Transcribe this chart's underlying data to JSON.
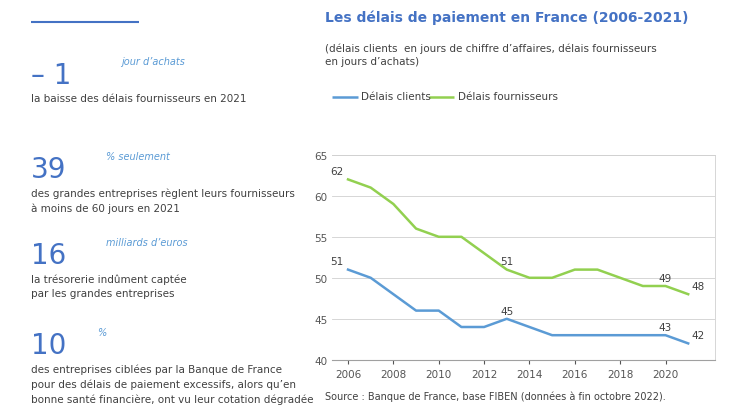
{
  "title_chart": "Les délais de paiement en France (2006-2021)",
  "subtitle_chart": "(délais clients  en jours de chiffre d’affaires, délais fournisseurs\nen jours d’achats)",
  "source": "Source : Banque de France, base FIBEN (données à fin octobre 2022).",
  "legend_clients": "Délais clients",
  "legend_fournisseurs": "Délais fournisseurs",
  "years": [
    2006,
    2007,
    2008,
    2009,
    2010,
    2011,
    2012,
    2013,
    2014,
    2015,
    2016,
    2017,
    2018,
    2019,
    2020,
    2021
  ],
  "clients": [
    51,
    50,
    48,
    46,
    46,
    44,
    44,
    45,
    44,
    43,
    43,
    43,
    43,
    43,
    43,
    42
  ],
  "fournisseurs": [
    62,
    61,
    59,
    56,
    55,
    55,
    53,
    51,
    50,
    50,
    51,
    51,
    50,
    49,
    49,
    48
  ],
  "color_clients": "#5b9bd5",
  "color_fournisseurs": "#92d050",
  "color_title": "#4472c4",
  "color_text_dark": "#404040",
  "color_text_blue": "#4472c4",
  "color_text_blue_small": "#5b9bd5",
  "ylim": [
    40,
    65
  ],
  "yticks": [
    40,
    45,
    50,
    55,
    60,
    65
  ],
  "xticks": [
    2006,
    2008,
    2010,
    2012,
    2014,
    2016,
    2018,
    2020
  ],
  "stat1_big": "– 1",
  "stat1_small": "jour d’achats",
  "stat1_desc": "la baisse des délais fournisseurs en 2021",
  "stat2_big": "39",
  "stat2_small": "% seulement",
  "stat2_desc": "des grandes entreprises règlent leurs fournisseurs\nà moins de 60 jours en 2021",
  "stat3_big": "16",
  "stat3_small": "milliards d’euros",
  "stat3_desc": "la trésorerie indûment captée\npar les grandes entreprises",
  "stat4_big": "10",
  "stat4_small": "%",
  "stat4_desc": "des entreprises ciblées par la Banque de France\npour des délais de paiement excessifs, alors qu’en\nbonne santé financière, ont vu leur cotation dégradée",
  "bg_color": "#ffffff",
  "grid_color": "#d0d0d0",
  "ann_c_2006": 51,
  "ann_c_2013": 45,
  "ann_c_2020": 43,
  "ann_c_2021": 42,
  "ann_f_2006": 62,
  "ann_f_2013": 51,
  "ann_f_2020": 49,
  "ann_f_2021": 48
}
